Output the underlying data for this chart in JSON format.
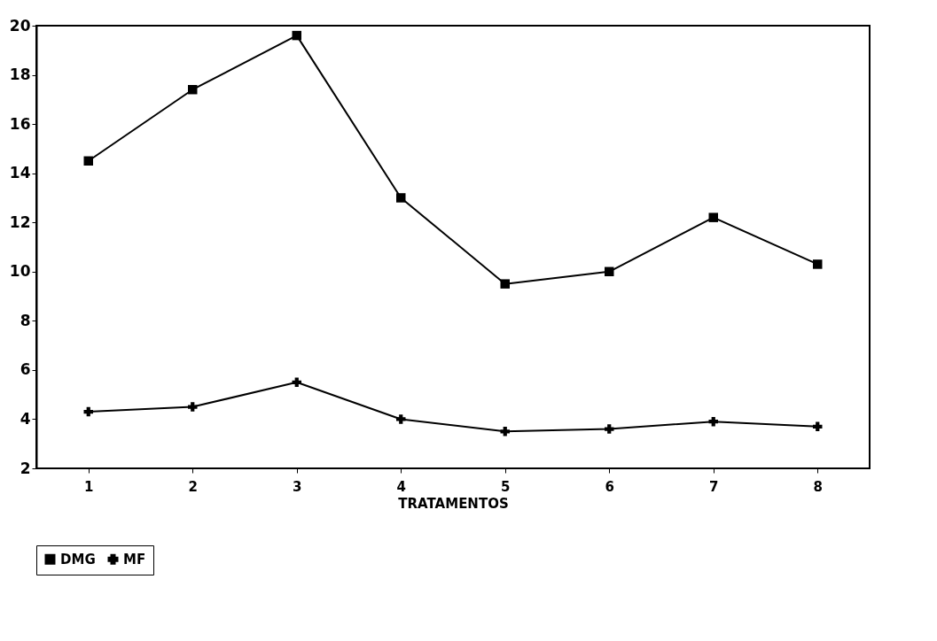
{
  "chart_data": {
    "type": "line",
    "xlabel": "TRATAMENTOS",
    "categories": [
      "1",
      "2",
      "3",
      "4",
      "5",
      "6",
      "7",
      "8"
    ],
    "series": [
      {
        "name": "DMG",
        "color": "#000000",
        "marker": "square",
        "values": [
          14.5,
          17.4,
          19.6,
          13.0,
          9.5,
          10.0,
          12.2,
          10.3
        ]
      },
      {
        "name": "MF",
        "color": "#000000",
        "marker": "cross",
        "values": [
          4.3,
          4.5,
          5.5,
          4.0,
          3.5,
          3.6,
          3.9,
          3.7
        ]
      }
    ],
    "ylim": [
      2,
      20
    ],
    "yticks": [
      2,
      4,
      6,
      8,
      10,
      12,
      14,
      16,
      18,
      20
    ],
    "legend": "bottom",
    "grid": false
  }
}
